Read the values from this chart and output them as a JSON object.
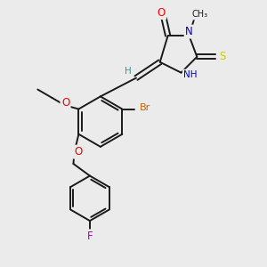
{
  "bg_color": "#ebebeb",
  "bond_color": "#1a1a1a",
  "line_width": 1.4,
  "atom_colors": {
    "O": "#ff0000",
    "N": "#0000cc",
    "S": "#cccc00",
    "Br": "#cc6600",
    "F": "#aa00aa",
    "C": "#1a1a1a",
    "H": "#339999"
  }
}
